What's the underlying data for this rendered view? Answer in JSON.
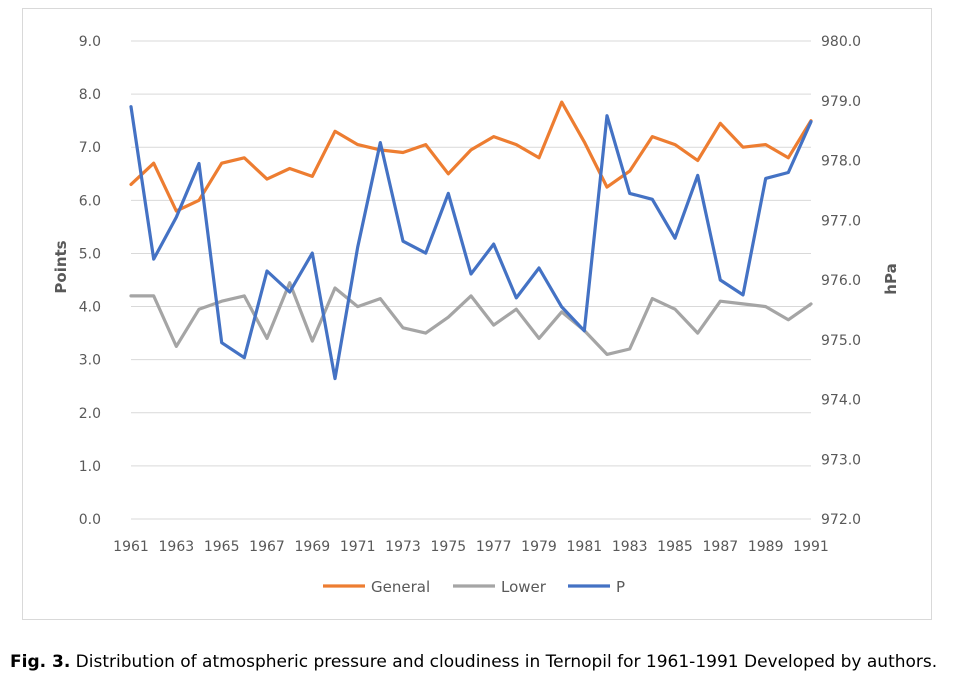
{
  "figure": {
    "label": "Fig. 3.",
    "caption": " Distribution of atmospheric pressure and cloudiness in Ternopil for 1961-1991 Developed by authors."
  },
  "chart_data": {
    "type": "line",
    "title": "",
    "xlabel": "",
    "ylabel": "Points",
    "y2label": "hPa",
    "ylim": [
      0,
      9
    ],
    "y2lim": [
      972,
      980
    ],
    "yticks": [
      "0.0",
      "1.0",
      "2.0",
      "3.0",
      "4.0",
      "5.0",
      "6.0",
      "7.0",
      "8.0",
      "9.0"
    ],
    "y2ticks": [
      "972.0",
      "973.0",
      "974.0",
      "975.0",
      "976.0",
      "977.0",
      "978.0",
      "979.0",
      "980.0"
    ],
    "x": [
      1961,
      1962,
      1963,
      1964,
      1965,
      1966,
      1967,
      1968,
      1969,
      1970,
      1971,
      1972,
      1973,
      1974,
      1975,
      1976,
      1977,
      1978,
      1979,
      1980,
      1981,
      1982,
      1983,
      1984,
      1985,
      1986,
      1987,
      1988,
      1989,
      1990,
      1991
    ],
    "xtick_labels": [
      "1961",
      "1963",
      "1965",
      "1967",
      "1969",
      "1971",
      "1973",
      "1975",
      "1977",
      "1979",
      "1981",
      "1983",
      "1985",
      "1987",
      "1989",
      "1991"
    ],
    "legend_position": "bottom",
    "series": [
      {
        "name": "General",
        "axis": "left",
        "color": "#ed7d31",
        "values": [
          6.3,
          6.7,
          5.8,
          6.0,
          6.7,
          6.8,
          6.4,
          6.6,
          6.45,
          7.3,
          7.05,
          6.95,
          6.9,
          7.05,
          6.5,
          6.95,
          7.2,
          7.05,
          6.8,
          7.85,
          7.1,
          6.25,
          6.55,
          7.2,
          7.05,
          6.75,
          7.45,
          7.0,
          7.05,
          6.8,
          7.5
        ]
      },
      {
        "name": "Lower",
        "axis": "left",
        "color": "#a5a5a5",
        "values": [
          4.2,
          4.2,
          3.25,
          3.95,
          4.1,
          4.2,
          3.4,
          4.45,
          3.35,
          4.35,
          4.0,
          4.15,
          3.6,
          3.5,
          3.8,
          4.2,
          3.65,
          3.95,
          3.4,
          3.9,
          3.55,
          3.1,
          3.2,
          4.15,
          3.95,
          3.5,
          4.1,
          4.05,
          4.0,
          3.75,
          4.05
        ]
      },
      {
        "name": "P",
        "axis": "right",
        "color": "#4472c4",
        "values": [
          978.9,
          976.35,
          977.05,
          977.95,
          974.95,
          974.7,
          976.15,
          975.8,
          976.45,
          974.35,
          976.55,
          978.3,
          976.65,
          976.45,
          977.45,
          976.1,
          976.6,
          975.7,
          976.2,
          975.55,
          975.15,
          978.75,
          977.45,
          977.35,
          976.7,
          977.75,
          976.0,
          975.75,
          977.7,
          977.8,
          978.65
        ]
      }
    ]
  }
}
